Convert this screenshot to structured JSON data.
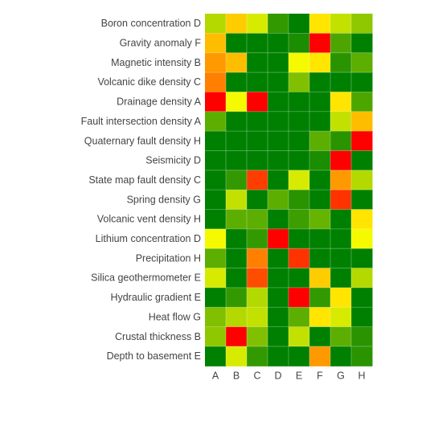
{
  "chart_data": {
    "type": "heatmap",
    "title": "",
    "xlabel": "",
    "ylabel": "",
    "x": [
      "A",
      "B",
      "C",
      "D",
      "E",
      "F",
      "G",
      "H"
    ],
    "y": [
      "Boron concentration D",
      "Gravity anomaly F",
      "Magnetic intensity B",
      "Volcanic dike density C",
      "Drainage density A",
      "Fault intersection density A",
      "Quaternary fault density H",
      "Seismicity D",
      "State map fault density C",
      "Spring density G",
      "Volcanic vent density H",
      "Lithium concentration D",
      "Precipitation H",
      "Silica geothermometer E",
      "Hydraulic gradient E",
      "Heat flow G",
      "Crustal thickness B",
      "Depth to basement E"
    ],
    "values": [
      [
        0.35,
        0.6,
        0.42,
        0.1,
        0.0,
        0.55,
        0.38,
        0.28
      ],
      [
        0.63,
        0.0,
        0.0,
        0.0,
        0.05,
        1.0,
        0.15,
        0.0
      ],
      [
        0.7,
        0.63,
        0.0,
        0.0,
        0.48,
        0.55,
        0.08,
        0.18
      ],
      [
        0.75,
        0.0,
        0.0,
        0.0,
        0.25,
        0.0,
        0.0,
        0.0
      ],
      [
        1.0,
        0.48,
        1.0,
        0.0,
        0.0,
        0.0,
        0.55,
        0.15
      ],
      [
        0.18,
        0.0,
        0.0,
        0.0,
        0.0,
        0.0,
        0.38,
        0.63
      ],
      [
        0.0,
        0.0,
        0.0,
        0.0,
        0.0,
        0.18,
        0.08,
        1.0
      ],
      [
        0.0,
        0.0,
        0.0,
        0.0,
        0.0,
        0.05,
        1.0,
        0.0
      ],
      [
        0.0,
        0.1,
        0.88,
        0.0,
        0.42,
        0.0,
        0.7,
        0.35
      ],
      [
        0.0,
        0.38,
        0.0,
        0.18,
        0.08,
        0.0,
        0.9,
        0.0
      ],
      [
        0.0,
        0.18,
        0.18,
        0.0,
        0.12,
        0.2,
        0.0,
        0.55
      ],
      [
        0.48,
        0.0,
        0.1,
        1.0,
        0.0,
        0.0,
        0.0,
        0.48
      ],
      [
        0.18,
        0.0,
        0.75,
        0.0,
        0.9,
        0.0,
        0.0,
        0.0
      ],
      [
        0.42,
        0.0,
        0.85,
        0.0,
        0.0,
        0.6,
        0.0,
        0.35
      ],
      [
        0.0,
        0.1,
        0.35,
        0.0,
        1.0,
        0.1,
        0.55,
        0.0
      ],
      [
        0.25,
        0.35,
        0.38,
        0.0,
        0.18,
        0.55,
        0.42,
        0.0
      ],
      [
        0.28,
        1.0,
        0.25,
        0.0,
        0.38,
        0.0,
        0.18,
        0.08
      ],
      [
        0.0,
        0.42,
        0.1,
        0.0,
        0.0,
        0.7,
        0.0,
        0.08
      ]
    ],
    "colorscale": [
      "#008000",
      "#ffff00",
      "#ff0000"
    ],
    "legend": "none",
    "grid": false
  }
}
